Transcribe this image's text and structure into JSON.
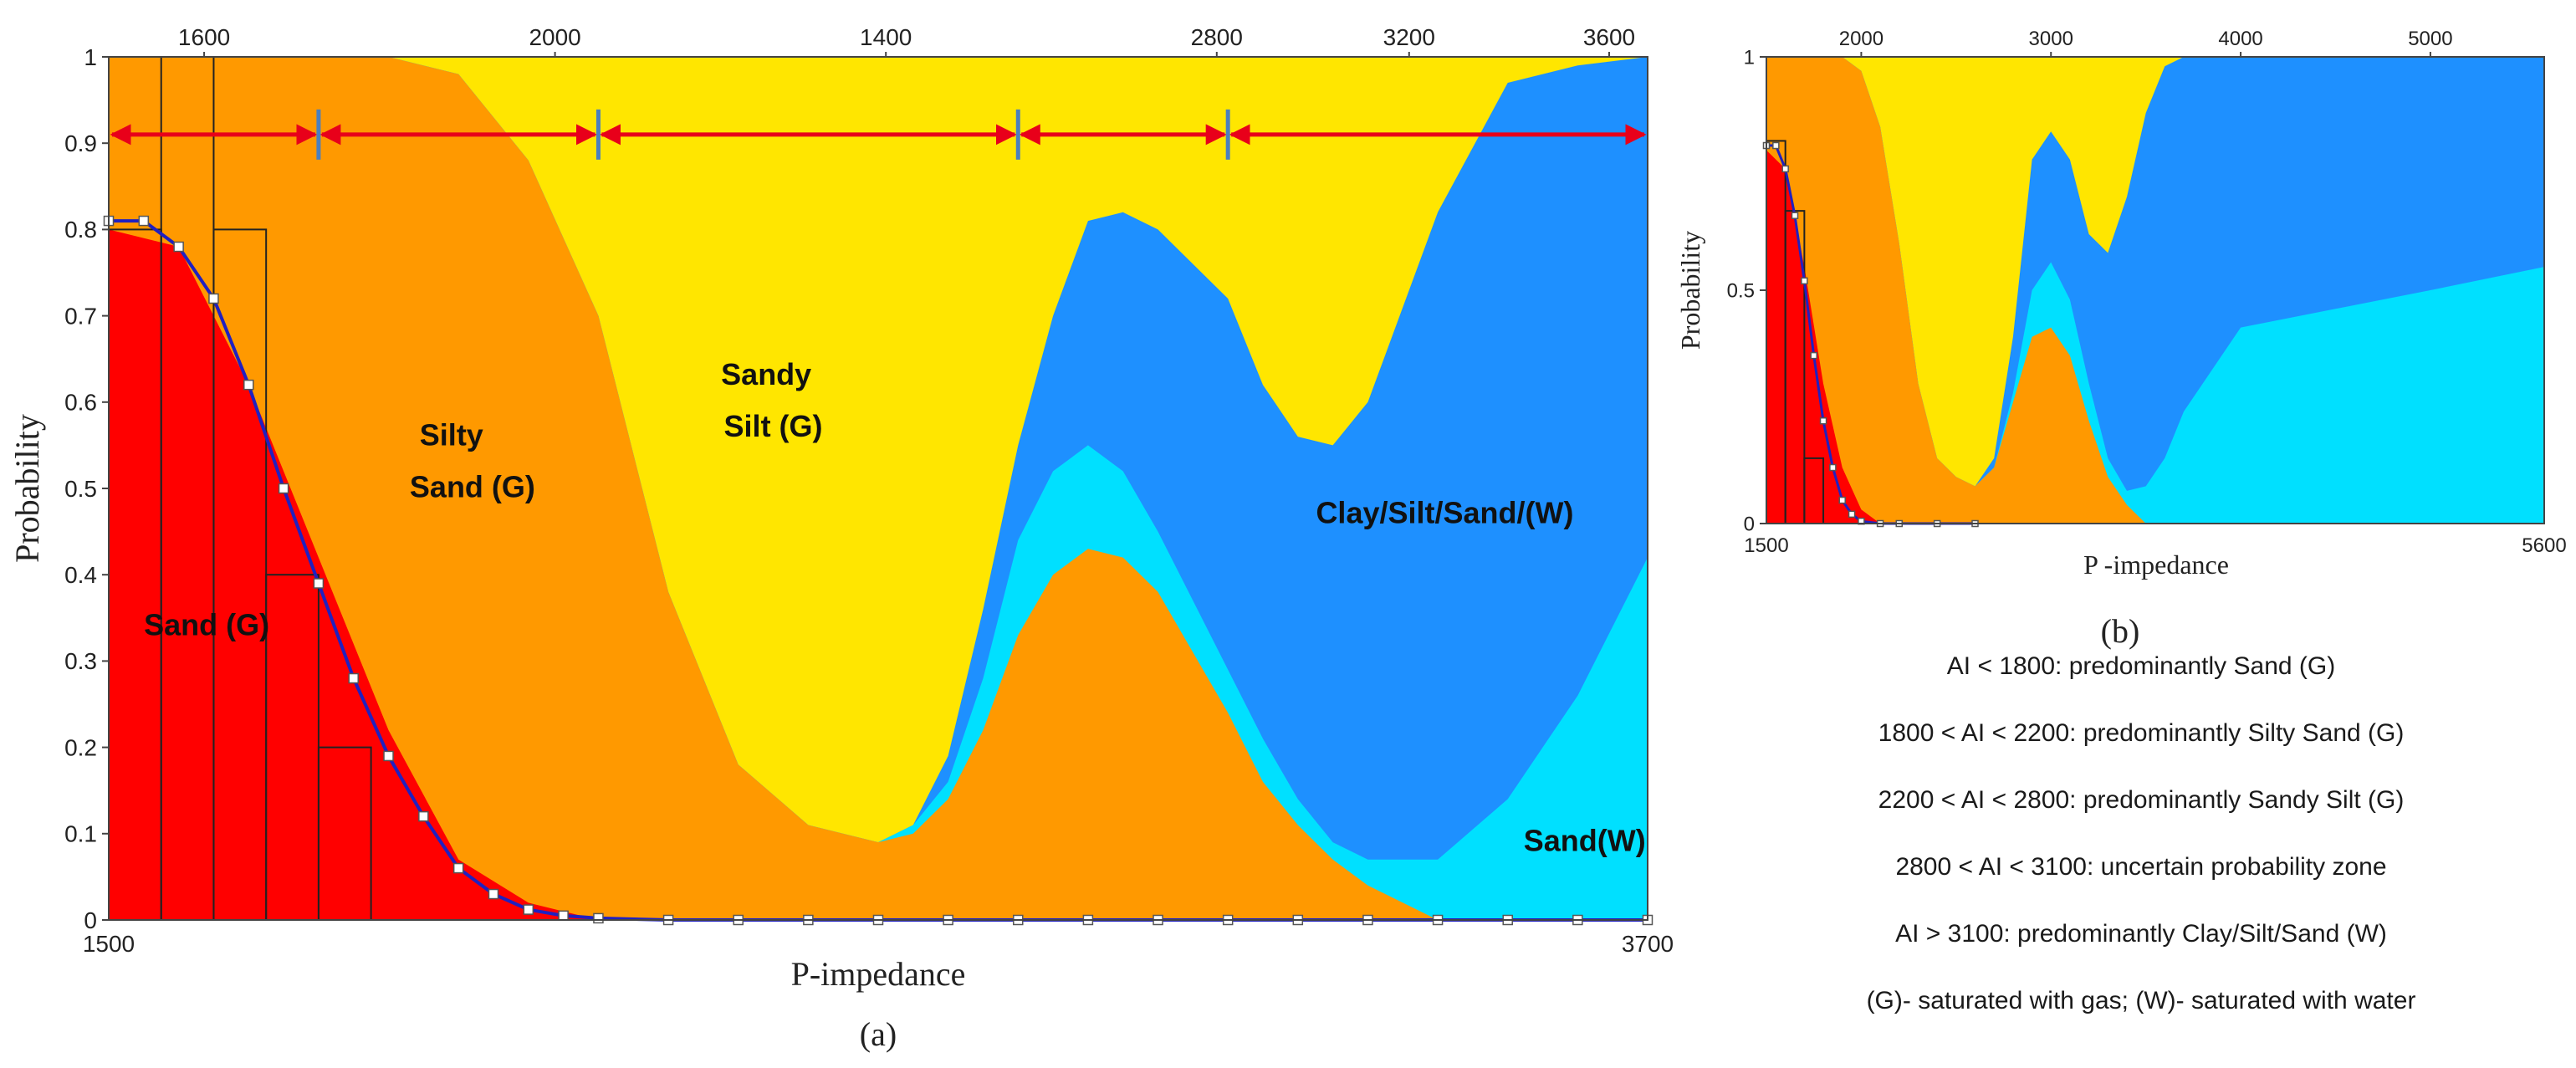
{
  "chart_data": [
    {
      "panel": "(a)",
      "type": "area",
      "xlabel": "P-impedance",
      "ylabel": "Probability",
      "x_range": [
        1500,
        3700
      ],
      "bottom_ticks": [
        "1500",
        "3700"
      ],
      "top_ticks": [
        "1600",
        "2000",
        "1400",
        "2800",
        "3200",
        "3600"
      ],
      "y_ticks": [
        "0",
        "0.1",
        "0.2",
        "0.3",
        "0.4",
        "0.5",
        "0.6",
        "0.7",
        "0.8",
        "0.9",
        "1"
      ],
      "ylim": [
        0,
        1
      ],
      "x": [
        1500,
        1600,
        1700,
        1800,
        1900,
        2000,
        2100,
        2200,
        2300,
        2400,
        2500,
        2600,
        2650,
        2700,
        2750,
        2800,
        2850,
        2900,
        2950,
        3000,
        3100,
        3150,
        3200,
        3250,
        3300,
        3400,
        3500,
        3600,
        3700
      ],
      "series": [
        {
          "name": "Sand (G)",
          "color": "#ff0000",
          "values": [
            0.8,
            0.78,
            0.62,
            0.42,
            0.22,
            0.07,
            0.02,
            0.0,
            0.0,
            0.0,
            0.0,
            0.0,
            0.0,
            0.0,
            0.0,
            0.0,
            0.0,
            0.0,
            0.0,
            0.0,
            0.0,
            0.0,
            0.0,
            0.0,
            0.0,
            0.0,
            0.0,
            0.0,
            0.0
          ]
        },
        {
          "name": "Silty Sand (G)",
          "color": "#ff9900",
          "values": [
            1.0,
            1.0,
            1.0,
            1.0,
            1.0,
            0.98,
            0.88,
            0.7,
            0.38,
            0.18,
            0.11,
            0.09,
            0.1,
            0.14,
            0.22,
            0.33,
            0.4,
            0.43,
            0.42,
            0.38,
            0.24,
            0.16,
            0.11,
            0.07,
            0.04,
            0.0,
            0.0,
            0.0,
            0.0
          ]
        },
        {
          "name": "Sand(W)",
          "color": "#00e0ff",
          "values": [
            1.0,
            1.0,
            1.0,
            1.0,
            1.0,
            0.98,
            0.88,
            0.7,
            0.38,
            0.18,
            0.11,
            0.09,
            0.11,
            0.16,
            0.28,
            0.44,
            0.52,
            0.55,
            0.52,
            0.45,
            0.29,
            0.21,
            0.14,
            0.09,
            0.07,
            0.07,
            0.14,
            0.26,
            0.42
          ]
        },
        {
          "name": "Clay/Silt/Sand/(W)",
          "color": "#1e90ff",
          "values": [
            1.0,
            1.0,
            1.0,
            1.0,
            1.0,
            0.98,
            0.88,
            0.7,
            0.38,
            0.18,
            0.11,
            0.09,
            0.11,
            0.19,
            0.36,
            0.55,
            0.7,
            0.81,
            0.82,
            0.8,
            0.72,
            0.62,
            0.56,
            0.55,
            0.6,
            0.82,
            0.97,
            0.99,
            1.0
          ]
        },
        {
          "name": "Sandy Silt (G)",
          "color": "#ffe600",
          "values": [
            1.0,
            1.0,
            1.0,
            1.0,
            1.0,
            1.0,
            1.0,
            1.0,
            1.0,
            1.0,
            1.0,
            1.0,
            1.0,
            1.0,
            1.0,
            1.0,
            1.0,
            1.0,
            1.0,
            1.0,
            1.0,
            1.0,
            1.0,
            1.0,
            1.0,
            1.0,
            1.0,
            1.0,
            1.0
          ]
        }
      ],
      "region_labels": [
        {
          "text": "Sand (G)",
          "x": 1640,
          "y": 0.33
        },
        {
          "text": "Silty",
          "x": 1990,
          "y": 0.55
        },
        {
          "text": "Sand (G)",
          "x": 2020,
          "y": 0.49
        },
        {
          "text": "Sandy",
          "x": 2440,
          "y": 0.62
        },
        {
          "text": "Silt (G)",
          "x": 2450,
          "y": 0.56
        },
        {
          "text": "Clay/Silt/Sand/(W)",
          "x": 3410,
          "y": 0.46
        },
        {
          "text": "Sand(W)",
          "x": 3610,
          "y": 0.08
        }
      ],
      "histogram": [
        {
          "x0": 1500,
          "x1": 1575,
          "value": 0.8
        },
        {
          "x0": 1575,
          "x1": 1650,
          "value": 1.0
        },
        {
          "x0": 1650,
          "x1": 1725,
          "value": 0.8
        },
        {
          "x0": 1725,
          "x1": 1800,
          "value": 0.4
        },
        {
          "x0": 1800,
          "x1": 1875,
          "value": 0.2
        }
      ],
      "cdf_curve": {
        "x": [
          1500,
          1550,
          1600,
          1650,
          1700,
          1750,
          1800,
          1850,
          1900,
          1950,
          2000,
          2050,
          2100,
          2150,
          2200,
          2300,
          2400,
          2500,
          2600,
          2700,
          2800,
          2900,
          3000,
          3100,
          3200,
          3300,
          3400,
          3500,
          3600,
          3700
        ],
        "y": [
          0.81,
          0.81,
          0.78,
          0.72,
          0.62,
          0.5,
          0.39,
          0.28,
          0.19,
          0.12,
          0.06,
          0.03,
          0.012,
          0.005,
          0.002,
          0.0,
          0.0,
          0.0,
          0.0,
          0.0,
          0.0,
          0.0,
          0.0,
          0.0,
          0.0,
          0.0,
          0.0,
          0.0,
          0.0,
          0.0
        ]
      },
      "boundaries": [
        1500,
        1800,
        2200,
        2800,
        3100,
        3700
      ],
      "arrow_y": 0.91,
      "caption": "(a)"
    },
    {
      "panel": "(b)",
      "type": "area",
      "xlabel": "P -impedance",
      "ylabel": "Probability",
      "x_range": [
        1500,
        5600
      ],
      "bottom_ticks": [
        "1500",
        "5600"
      ],
      "top_ticks": [
        "2000",
        "3000",
        "4000",
        "5000"
      ],
      "y_ticks": [
        "0",
        "0.5",
        "1"
      ],
      "ylim": [
        0,
        1
      ],
      "x": [
        1500,
        1600,
        1700,
        1800,
        1900,
        2000,
        2100,
        2200,
        2300,
        2400,
        2500,
        2600,
        2700,
        2800,
        2900,
        3000,
        3100,
        3200,
        3300,
        3400,
        3500,
        3600,
        3700,
        4000,
        4500,
        5000,
        5600
      ],
      "series": [
        {
          "name": "Sand (G)",
          "color": "#ff0000",
          "values": [
            0.8,
            0.76,
            0.55,
            0.3,
            0.12,
            0.03,
            0.0,
            0.0,
            0.0,
            0.0,
            0.0,
            0.0,
            0.0,
            0.0,
            0.0,
            0.0,
            0.0,
            0.0,
            0.0,
            0.0,
            0.0,
            0.0,
            0.0,
            0.0,
            0.0,
            0.0,
            0.0
          ]
        },
        {
          "name": "Silty Sand (G)",
          "color": "#ff9900",
          "values": [
            1.0,
            1.0,
            1.0,
            1.0,
            1.0,
            0.97,
            0.85,
            0.6,
            0.3,
            0.14,
            0.1,
            0.08,
            0.12,
            0.26,
            0.4,
            0.42,
            0.36,
            0.22,
            0.1,
            0.04,
            0.0,
            0.0,
            0.0,
            0.0,
            0.0,
            0.0,
            0.0
          ]
        },
        {
          "name": "Sand(W)",
          "color": "#00e0ff",
          "values": [
            1.0,
            1.0,
            1.0,
            1.0,
            1.0,
            0.97,
            0.85,
            0.6,
            0.3,
            0.14,
            0.1,
            0.08,
            0.12,
            0.28,
            0.5,
            0.56,
            0.48,
            0.3,
            0.14,
            0.07,
            0.08,
            0.14,
            0.24,
            0.42,
            0.46,
            0.5,
            0.55
          ]
        },
        {
          "name": "Clay/Silt/Sand/(W)",
          "color": "#1e90ff",
          "values": [
            1.0,
            1.0,
            1.0,
            1.0,
            1.0,
            0.97,
            0.85,
            0.6,
            0.3,
            0.14,
            0.1,
            0.08,
            0.14,
            0.4,
            0.78,
            0.84,
            0.78,
            0.62,
            0.58,
            0.7,
            0.88,
            0.98,
            1.0,
            1.0,
            1.0,
            1.0,
            1.0
          ]
        },
        {
          "name": "Sandy Silt (G)",
          "color": "#ffe600",
          "values": [
            1.0,
            1.0,
            1.0,
            1.0,
            1.0,
            1.0,
            1.0,
            1.0,
            1.0,
            1.0,
            1.0,
            1.0,
            1.0,
            1.0,
            1.0,
            1.0,
            1.0,
            1.0,
            1.0,
            1.0,
            1.0,
            1.0,
            1.0,
            1.0,
            1.0,
            1.0,
            1.0
          ]
        }
      ],
      "histogram": [
        {
          "x0": 1500,
          "x1": 1600,
          "value": 0.82
        },
        {
          "x0": 1600,
          "x1": 1700,
          "value": 0.67
        },
        {
          "x0": 1700,
          "x1": 1800,
          "value": 0.14
        }
      ],
      "cdf_curve": {
        "x": [
          1500,
          1550,
          1600,
          1650,
          1700,
          1750,
          1800,
          1850,
          1900,
          1950,
          2000,
          2100,
          2200,
          2400,
          2600
        ],
        "y": [
          0.81,
          0.81,
          0.76,
          0.66,
          0.52,
          0.36,
          0.22,
          0.12,
          0.05,
          0.02,
          0.005,
          0.0,
          0.0,
          0.0,
          0.0
        ]
      },
      "caption": "(b)"
    }
  ],
  "notes": [
    "AI < 1800: predominantly Sand (G)",
    "1800 < AI < 2200: predominantly Silty Sand (G)",
    "2200 < AI < 2800: predominantly Sandy Silt (G)",
    "2800 < AI < 3100: uncertain probability zone",
    "AI > 3100: predominantly Clay/Silt/Sand (W)",
    "(G)- saturated with gas; (W)- saturated with water"
  ]
}
